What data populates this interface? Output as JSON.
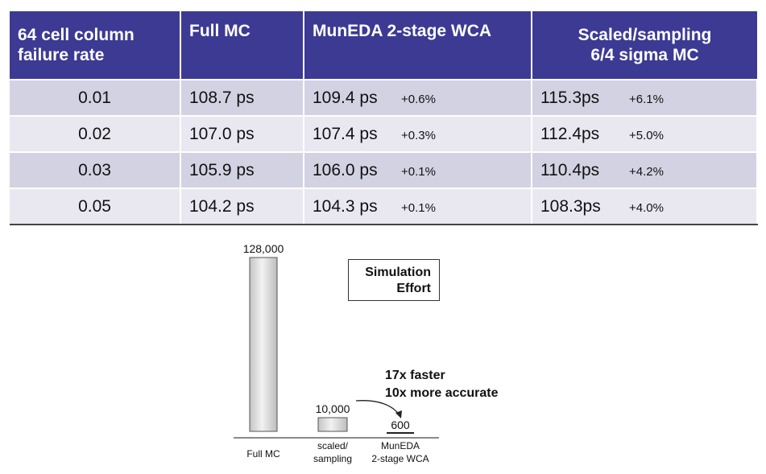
{
  "table": {
    "headers": {
      "col1_line1": "64 cell column",
      "col1_line2": "failure rate",
      "col2": "Full MC",
      "col3": "MunEDA 2-stage WCA",
      "col4_line1": "Scaled/sampling",
      "col4_line2": "6/4 sigma MC"
    },
    "rows": [
      {
        "rate": "0.01",
        "full_mc": "108.7 ps",
        "wca": "109.4 ps",
        "wca_pct": "+0.6%",
        "scaled": "115.3ps",
        "scaled_pct": "+6.1%"
      },
      {
        "rate": "0.02",
        "full_mc": "107.0 ps",
        "wca": "107.4 ps",
        "wca_pct": "+0.3%",
        "scaled": "112.4ps",
        "scaled_pct": "+5.0%"
      },
      {
        "rate": "0.03",
        "full_mc": "105.9 ps",
        "wca": "106.0 ps",
        "wca_pct": "+0.1%",
        "scaled": "110.4ps",
        "scaled_pct": "+4.2%"
      },
      {
        "rate": "0.05",
        "full_mc": "104.2 ps",
        "wca": "104.3 ps",
        "wca_pct": "+0.1%",
        "scaled": "108.3ps",
        "scaled_pct": "+4.0%"
      }
    ]
  },
  "legend_box": {
    "line1": "Simulation",
    "line2": "Effort"
  },
  "annotation": {
    "line1": "17x faster",
    "line2": "10x more accurate"
  },
  "chart_data": {
    "type": "bar",
    "categories": [
      "Full MC",
      "scaled/ sampling",
      "MunEDA 2-stage WCA"
    ],
    "category_lines": [
      [
        "Full MC"
      ],
      [
        "scaled/",
        "sampling"
      ],
      [
        "MunEDA",
        "2-stage WCA"
      ]
    ],
    "values": [
      128000,
      10000,
      600
    ],
    "value_labels": [
      "128,000",
      "10,000",
      "600"
    ],
    "title": "Simulation Effort",
    "xlabel": "",
    "ylabel": "",
    "ylim": [
      0,
      128000
    ],
    "grid": false
  }
}
